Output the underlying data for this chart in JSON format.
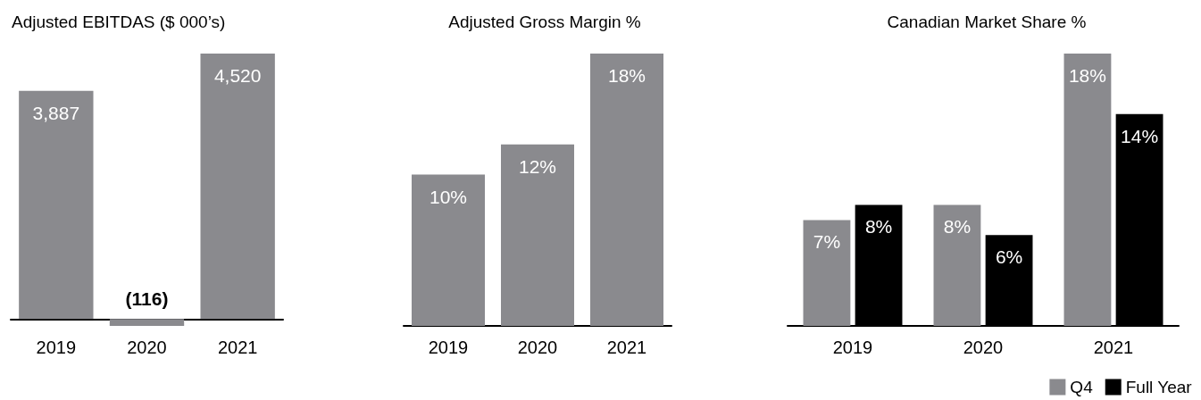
{
  "chart_data": [
    {
      "type": "bar",
      "title": "Adjusted EBITDAS ($ 000’s)",
      "categories": [
        "2019",
        "2020",
        "2021"
      ],
      "tick_labels": "x",
      "grid": false,
      "legend": false,
      "series": [
        {
          "color": "#8a8a8e",
          "values": [
            3887,
            -116,
            4520
          ],
          "value_labels": [
            "3,887",
            "(116)",
            "4,520"
          ]
        }
      ]
    },
    {
      "type": "bar",
      "title": "Adjusted Gross Margin %",
      "categories": [
        "2019",
        "2020",
        "2021"
      ],
      "tick_labels": "x",
      "grid": false,
      "legend": false,
      "series": [
        {
          "color": "#8a8a8e",
          "values": [
            10,
            12,
            18
          ],
          "value_labels": [
            "10%",
            "12%",
            "18%"
          ]
        }
      ]
    },
    {
      "type": "bar",
      "title": "Canadian Market Share %",
      "categories": [
        "2019",
        "2020",
        "2021"
      ],
      "tick_labels": "x",
      "grid": false,
      "legend": "bottom right",
      "series": [
        {
          "name": "Q4",
          "color": "#8a8a8e",
          "values": [
            7,
            8,
            18
          ],
          "value_labels": [
            "7%",
            "8%",
            "18%"
          ]
        },
        {
          "name": "Full Year",
          "color": "#000000",
          "values": [
            8,
            6,
            14
          ],
          "value_labels": [
            "8%",
            "6%",
            "14%"
          ]
        }
      ]
    }
  ]
}
